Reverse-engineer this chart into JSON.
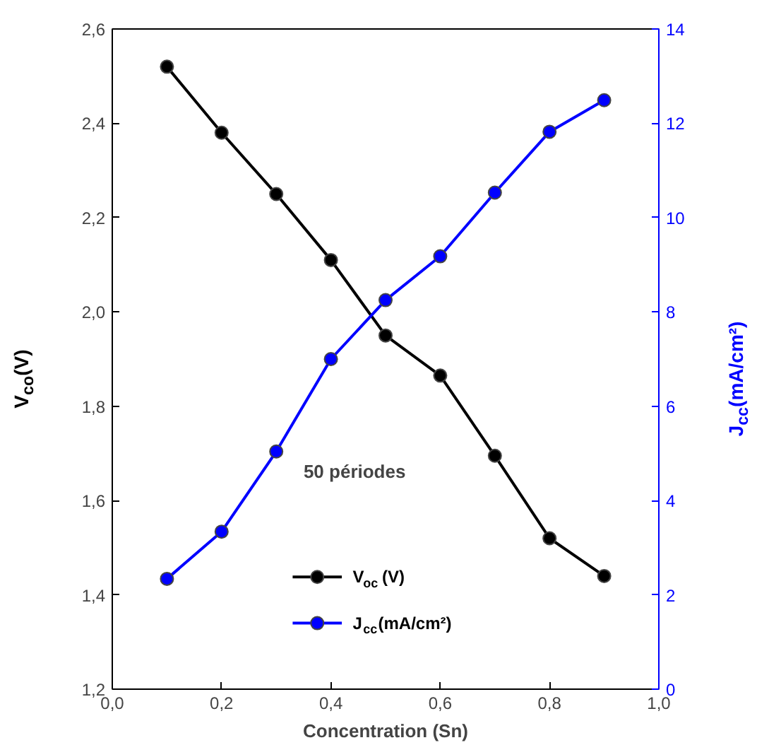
{
  "chart_data": {
    "type": "line",
    "xlabel": "Concentration (Sn)",
    "ylabel": "V$_{co}$(V)",
    "y2label": "J$_{cc}$(mA/cm²)",
    "x": [
      0.1,
      0.2,
      0.3,
      0.4,
      0.5,
      0.6,
      0.7,
      0.8,
      0.9
    ],
    "series": [
      {
        "name": "V$_{oc}$ (V)",
        "color": "#000000",
        "values": [
          2.52,
          2.38,
          2.25,
          2.11,
          1.95,
          1.865,
          1.695,
          1.52,
          1.44
        ]
      },
      {
        "name": "J$_{cc}$(mA/cm²)",
        "color": "#0000ff",
        "axis": "y2",
        "values": [
          2.34,
          3.34,
          5.04,
          7.0,
          8.25,
          9.18,
          10.53,
          11.82,
          12.49
        ]
      }
    ],
    "xlim": [
      0,
      1
    ],
    "xticks": [
      {
        "value": 0,
        "label": "0,0"
      },
      {
        "value": 0.2,
        "label": "0,2"
      },
      {
        "value": 0.4,
        "label": "0,4"
      },
      {
        "value": 0.6,
        "label": "0,6"
      },
      {
        "value": 0.8,
        "label": "0,8"
      },
      {
        "value": 1,
        "label": "1,0"
      }
    ],
    "ylim": [
      1.2,
      2.6
    ],
    "yticks": [
      {
        "value": 1.2,
        "label": "1,2"
      },
      {
        "value": 1.4,
        "label": "1,4"
      },
      {
        "value": 1.6,
        "label": "1,6"
      },
      {
        "value": 1.8,
        "label": "1,8"
      },
      {
        "value": 2.0,
        "label": "2,0"
      },
      {
        "value": 2.2,
        "label": "2,2"
      },
      {
        "value": 2.4,
        "label": "2,4"
      },
      {
        "value": 2.6,
        "label": "2,6"
      }
    ],
    "y2lim": [
      0,
      14
    ],
    "y2ticks": [
      0,
      2,
      4,
      6,
      8,
      10,
      12,
      14
    ],
    "annotations": [
      "50 périodes"
    ],
    "legend": "bottom",
    "marker": "circle",
    "line_style": "solid",
    "grid": false
  }
}
